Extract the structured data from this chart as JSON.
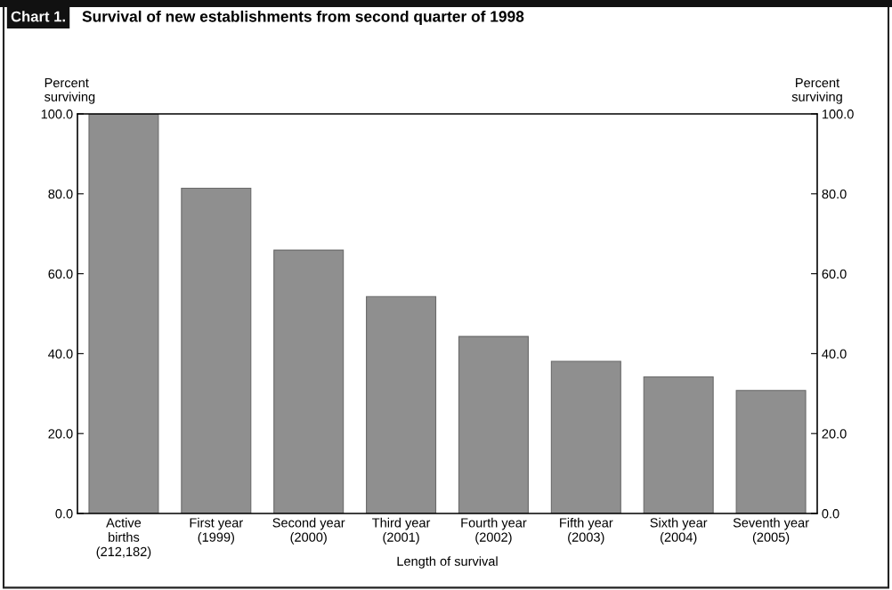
{
  "chart_data": {
    "type": "bar",
    "title": "Survival of new establishments from second quarter of 1998",
    "annotations": [
      "Chart 1."
    ],
    "xlabel": "Length of survival",
    "ylabel": "Percent\nsurviving",
    "y2label": "Percent\nsurviving",
    "categories": [
      "Active\nbirths\n(212,182)",
      "First year\n(1999)",
      "Second year\n(2000)",
      "Third year\n(2001)",
      "Fourth year\n(2002)",
      "Fifth year\n(2003)",
      "Sixth year\n(2004)",
      "Seventh year\n(2005)"
    ],
    "values": [
      100.0,
      81.4,
      65.9,
      54.3,
      44.3,
      38.1,
      34.2,
      30.8
    ],
    "color": "#8f8f8f",
    "ylim": [
      0,
      100
    ],
    "yticks": [
      {
        "value": 0,
        "label": "0.0"
      },
      {
        "value": 20,
        "label": "20.0"
      },
      {
        "value": 40,
        "label": "40.0"
      },
      {
        "value": 60,
        "label": "60.0"
      },
      {
        "value": 80,
        "label": "80.0"
      },
      {
        "value": 100,
        "label": "100.0"
      }
    ],
    "y2lim": [
      0,
      100
    ],
    "y2ticks": [
      {
        "value": 0,
        "label": "0.0"
      },
      {
        "value": 20,
        "label": "20.0"
      },
      {
        "value": 40,
        "label": "40.0"
      },
      {
        "value": 60,
        "label": "60.0"
      },
      {
        "value": 80,
        "label": "80.0"
      },
      {
        "value": 100,
        "label": "100.0"
      }
    ],
    "grid": false,
    "legend": false
  }
}
